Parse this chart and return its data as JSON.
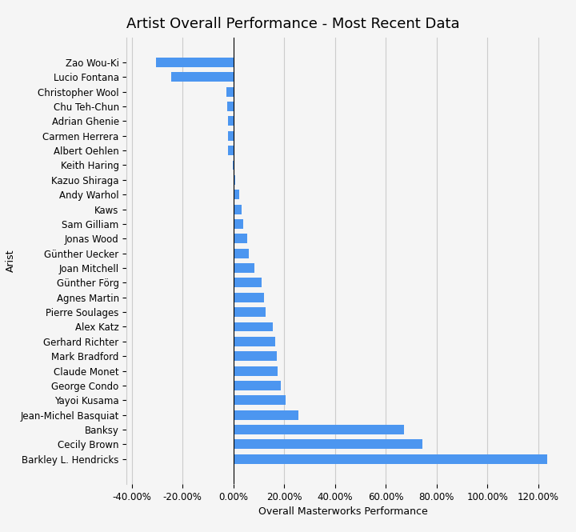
{
  "title": "Artist Overall Performance - Most Recent Data",
  "xlabel": "Overall Masterworks Performance",
  "ylabel": "Arist",
  "bar_color": "#4C96F0",
  "xlim": [
    -0.42,
    1.28
  ],
  "xticks": [
    -0.4,
    -0.2,
    0.0,
    0.2,
    0.4,
    0.6,
    0.8,
    1.0,
    1.2
  ],
  "xtick_labels": [
    "-40.00%",
    "-20.00%",
    "0.00%",
    "20.00%",
    "40.00%",
    "60.00%",
    "80.00%",
    "100.00%",
    "120.00%"
  ],
  "artists": [
    "Zao Wou-Ki",
    "Lucio Fontana",
    "Christopher Wool",
    "Chu Teh-Chun",
    "Adrian Ghenie",
    "Carmen Herrera",
    "Albert Oehlen",
    "Keith Haring",
    "Kazuo Shiraga",
    "Andy Warhol",
    "Kaws",
    "Sam Gilliam",
    "Jonas Wood",
    "Günther Uecker",
    "Joan Mitchell",
    "Günther Förg",
    "Agnes Martin",
    "Pierre Soulages",
    "Alex Katz",
    "Gerhard Richter",
    "Mark Bradford",
    "Claude Monet",
    "George Condo",
    "Yayoi Kusama",
    "Jean-Michel Basquiat",
    "Banksy",
    "Cecily Brown",
    "Barkley L. Hendricks"
  ],
  "values": [
    -0.305,
    -0.245,
    -0.028,
    -0.025,
    -0.023,
    -0.022,
    -0.02,
    -0.001,
    0.007,
    0.022,
    0.033,
    0.037,
    0.055,
    0.06,
    0.083,
    0.11,
    0.12,
    0.125,
    0.155,
    0.165,
    0.17,
    0.175,
    0.185,
    0.205,
    0.255,
    0.67,
    0.745,
    1.235
  ],
  "background_color": "#f5f5f5",
  "grid_color": "#cccccc",
  "title_fontsize": 13,
  "axis_fontsize": 9,
  "tick_fontsize": 8.5
}
